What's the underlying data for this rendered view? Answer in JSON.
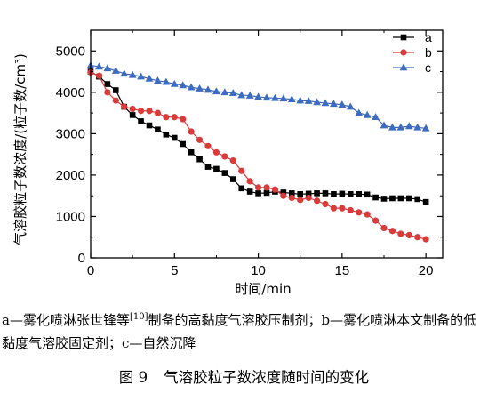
{
  "chart_data": {
    "type": "line",
    "title": "",
    "xlabel": "时间/min",
    "ylabel": "气溶胶粒子数浓度/(粒子数/cm³)",
    "xlim": [
      0,
      21
    ],
    "ylim": [
      0,
      5500
    ],
    "xticks": [
      0,
      5,
      10,
      15,
      20
    ],
    "yticks": [
      0,
      1000,
      2000,
      3000,
      4000,
      5000
    ],
    "legend_position": "top-right",
    "grid": false,
    "series": [
      {
        "name": "a",
        "color": "#000000",
        "marker": "square",
        "x": [
          0,
          0.5,
          1,
          1.5,
          2,
          2.5,
          3,
          3.5,
          4,
          4.5,
          5,
          5.5,
          6,
          6.5,
          7,
          7.5,
          8,
          8.5,
          9,
          9.5,
          10,
          10.5,
          11,
          11.5,
          12,
          12.5,
          13,
          13.5,
          14,
          14.5,
          15,
          15.5,
          16,
          16.5,
          17,
          17.5,
          18,
          18.5,
          19,
          19.5,
          20
        ],
        "values": [
          4500,
          4380,
          4200,
          4050,
          3650,
          3450,
          3300,
          3200,
          3100,
          2980,
          2900,
          2750,
          2550,
          2380,
          2200,
          2150,
          2050,
          1900,
          1680,
          1600,
          1560,
          1570,
          1600,
          1580,
          1560,
          1540,
          1550,
          1560,
          1560,
          1540,
          1550,
          1540,
          1540,
          1530,
          1460,
          1430,
          1440,
          1440,
          1440,
          1420,
          1350
        ]
      },
      {
        "name": "b",
        "color": "#d93b3b",
        "marker": "circle",
        "x": [
          0,
          0.5,
          1,
          1.5,
          2,
          2.5,
          3,
          3.5,
          4,
          4.5,
          5,
          5.5,
          6,
          6.5,
          7,
          7.5,
          8,
          8.5,
          9,
          9.5,
          10,
          10.5,
          11,
          11.5,
          12,
          12.5,
          13,
          13.5,
          14,
          14.5,
          15,
          15.5,
          16,
          16.5,
          17,
          17.5,
          18,
          18.5,
          19,
          19.5,
          20
        ],
        "values": [
          4480,
          4400,
          4000,
          3800,
          3650,
          3600,
          3550,
          3550,
          3500,
          3400,
          3400,
          3350,
          3050,
          2850,
          2700,
          2550,
          2450,
          2350,
          2100,
          1850,
          1700,
          1700,
          1650,
          1500,
          1450,
          1400,
          1450,
          1380,
          1300,
          1200,
          1200,
          1150,
          1100,
          1050,
          900,
          720,
          650,
          580,
          550,
          500,
          450
        ]
      },
      {
        "name": "c",
        "color": "#3d6bbf",
        "marker": "triangle",
        "x": [
          0,
          0.5,
          1,
          1.5,
          2,
          2.5,
          3,
          3.5,
          4,
          4.5,
          5,
          5.5,
          6,
          6.5,
          7,
          7.5,
          8,
          8.5,
          9,
          9.5,
          10,
          10.5,
          11,
          11.5,
          12,
          12.5,
          13,
          13.5,
          14,
          14.5,
          15,
          15.5,
          16,
          16.5,
          17,
          17.5,
          18,
          18.5,
          19,
          19.5,
          20
        ],
        "values": [
          4650,
          4620,
          4580,
          4520,
          4450,
          4420,
          4380,
          4330,
          4280,
          4250,
          4200,
          4170,
          4120,
          4090,
          4060,
          4020,
          4000,
          3980,
          3930,
          3920,
          3890,
          3870,
          3860,
          3850,
          3830,
          3800,
          3790,
          3760,
          3740,
          3720,
          3700,
          3650,
          3500,
          3450,
          3400,
          3200,
          3150,
          3150,
          3180,
          3150,
          3130
        ]
      }
    ]
  },
  "caption": {
    "note_part1": "a—雾化喷淋张世锋等",
    "note_ref": "[10]",
    "note_part2": "制备的高黏度气溶胶压制剂；b—雾化喷淋本文制备的低黏度气溶胶固定剂；c—自然沉降",
    "figure_number": "图 9",
    "figure_title": "气溶胶粒子数浓度随时间的变化"
  }
}
